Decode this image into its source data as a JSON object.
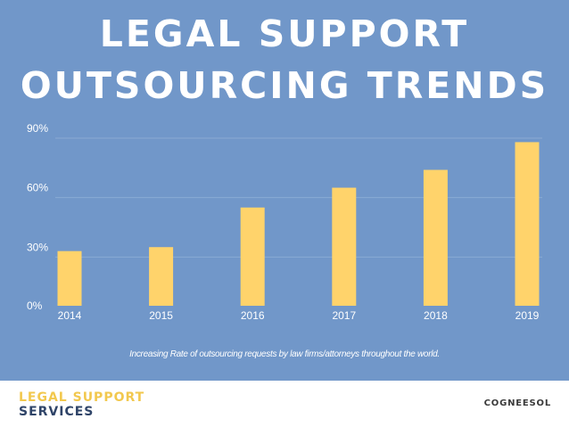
{
  "title": {
    "line1": "LEGAL SUPPORT",
    "line2": "OUTSOURCING TRENDS"
  },
  "caption": "Increasing Rate of outsourcing requests by law firms/attorneys throughout the world.",
  "footer": {
    "brand_line1": "LEGAL SUPPORT",
    "brand_line2": "SERVICES",
    "company": "COGNEESOL"
  },
  "colors": {
    "background": "#7197c9",
    "bar": "#ffd36b",
    "gridline": "#8aaad4",
    "text": "#ffffff",
    "brand_accent": "#f2c84e",
    "brand_dark": "#2f4468"
  },
  "chart_data": {
    "type": "bar",
    "categories": [
      "2014",
      "2015",
      "2016",
      "2017",
      "2018",
      "2019"
    ],
    "values": [
      33,
      35,
      55,
      65,
      74,
      88
    ],
    "yticks": [
      "0%",
      "30%",
      "60%",
      "90%"
    ],
    "ytick_values": [
      0,
      30,
      60,
      90
    ],
    "ylim": [
      0,
      90
    ],
    "grid": true,
    "legend": "none",
    "xlabel": "",
    "ylabel": ""
  }
}
